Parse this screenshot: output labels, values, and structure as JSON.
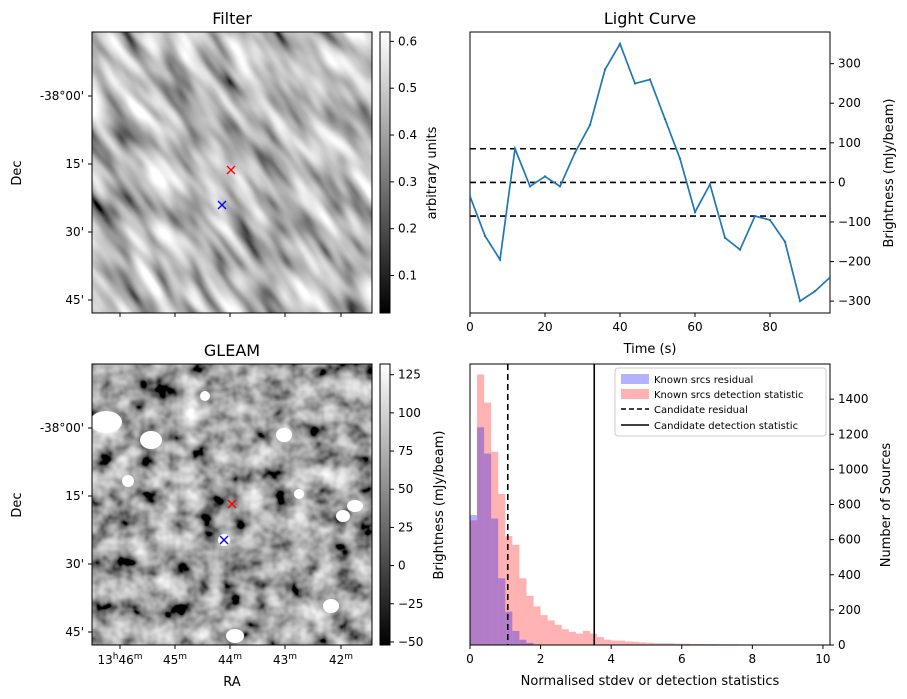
{
  "chart_data": [
    {
      "type": "heatmap",
      "title": "Filter",
      "ylabel": "Dec",
      "ytick_labels": [
        "-38°00'",
        "15'",
        "30'",
        "45'"
      ],
      "colormap": "gray",
      "colorbar": {
        "label": "arbitrary units",
        "range": [
          0.02,
          0.62
        ],
        "ticks": [
          0.1,
          0.2,
          0.3,
          0.4,
          0.5,
          0.6
        ],
        "tick_labels": [
          "0.1",
          "0.2",
          "0.3",
          "0.4",
          "0.5",
          "0.6"
        ]
      },
      "markers": [
        {
          "name": "red-x",
          "color": "#ff0000",
          "ra_deg": 206.0,
          "dec_deg": -38.25
        },
        {
          "name": "blue-x",
          "color": "#0000ff",
          "ra_deg": 206.02,
          "dec_deg": -38.4
        }
      ]
    },
    {
      "type": "line",
      "title": "Light Curve",
      "xlabel": "Time (s)",
      "ylabel": "Brightness (mJy/beam)",
      "xlim": [
        0,
        96
      ],
      "ylim": [
        -330,
        380
      ],
      "xticks": [
        0,
        20,
        40,
        60,
        80
      ],
      "yticks": [
        -300,
        -200,
        -100,
        0,
        100,
        200,
        300
      ],
      "series": [
        {
          "color": "#1f77b4",
          "x": [
            0,
            4,
            8,
            12,
            16,
            20,
            24,
            28,
            32,
            36,
            40,
            44,
            48,
            52,
            56,
            60,
            64,
            68,
            72,
            76,
            80,
            84,
            88,
            92,
            96
          ],
          "y": [
            -35,
            -135,
            -195,
            85,
            -10,
            15,
            -10,
            75,
            145,
            285,
            350,
            250,
            260,
            160,
            60,
            -75,
            -5,
            -140,
            -170,
            -85,
            -95,
            -150,
            -300,
            -275,
            -240
          ]
        }
      ],
      "hlines": [
        {
          "y": 85,
          "style": "dashed",
          "color": "#000000"
        },
        {
          "y": 0,
          "style": "dashed",
          "color": "#000000"
        },
        {
          "y": -85,
          "style": "dashed",
          "color": "#000000"
        }
      ]
    },
    {
      "type": "heatmap",
      "title": "GLEAM",
      "xlabel": "RA",
      "ylabel": "Dec",
      "ytick_labels": [
        "-38°00'",
        "15'",
        "30'",
        "45'"
      ],
      "xtick_labels": [
        {
          "main": "13",
          "sup1": "h",
          "mid": "46",
          "sup2": "m"
        },
        {
          "main": "45",
          "sup2": "m"
        },
        {
          "main": "44",
          "sup2": "m"
        },
        {
          "main": "43",
          "sup2": "m"
        },
        {
          "main": "42",
          "sup2": "m"
        }
      ],
      "colormap": "gray",
      "colorbar": {
        "label": "Brightness (mJy/beam)",
        "range": [
          -52,
          132
        ],
        "ticks": [
          -50,
          -25,
          0,
          25,
          50,
          75,
          100,
          125
        ],
        "tick_labels": [
          "−50",
          "−25",
          "0",
          "25",
          "50",
          "75",
          "100",
          "125"
        ]
      },
      "markers": [
        {
          "name": "red-x",
          "color": "#ff0000",
          "ra_deg": 206.0,
          "dec_deg": -38.25
        },
        {
          "name": "blue-x",
          "color": "#0000ff",
          "ra_deg": 206.02,
          "dec_deg": -38.4
        }
      ]
    },
    {
      "type": "bar",
      "subtype": "histogram",
      "xlabel": "Normalised stdev or detection statistics",
      "ylabel": "Number of Sources",
      "xlim": [
        0,
        10.2
      ],
      "ylim": [
        0,
        1600
      ],
      "xticks": [
        0,
        2,
        4,
        6,
        8,
        10
      ],
      "yticks": [
        0,
        200,
        400,
        600,
        800,
        1000,
        1200,
        1400
      ],
      "bin_width": 0.2,
      "series": [
        {
          "name": "Known srcs residual",
          "color": "#0000ff",
          "opacity": 0.3,
          "bin_starts": [
            0,
            0.2,
            0.4,
            0.6,
            0.8,
            1.0,
            1.2,
            1.4,
            1.6,
            1.8
          ],
          "values": [
            740,
            1240,
            1090,
            720,
            380,
            190,
            80,
            30,
            12,
            4
          ]
        },
        {
          "name": "Known srcs detection statistic",
          "color": "#ff0000",
          "opacity": 0.3,
          "bin_starts": [
            0,
            0.2,
            0.4,
            0.6,
            0.8,
            1.0,
            1.2,
            1.4,
            1.6,
            1.8,
            2.0,
            2.2,
            2.4,
            2.6,
            2.8,
            3.0,
            3.2,
            3.4,
            3.6,
            3.8,
            4.0,
            4.2,
            4.4,
            4.6,
            4.8,
            5.0,
            5.2,
            5.4,
            5.6,
            5.8,
            6.0,
            6.2,
            6.4,
            6.6,
            6.8,
            7.0,
            7.2,
            7.4,
            7.6,
            7.8,
            8.0,
            8.2,
            8.4,
            8.6,
            8.8,
            9.0,
            9.2,
            9.4,
            9.6,
            9.8
          ],
          "values": [
            710,
            1540,
            1380,
            1100,
            860,
            620,
            570,
            380,
            280,
            220,
            170,
            140,
            115,
            90,
            75,
            65,
            80,
            65,
            45,
            30,
            25,
            25,
            20,
            18,
            15,
            12,
            10,
            10,
            10,
            8,
            8,
            6,
            6,
            5,
            5,
            4,
            4,
            4,
            3,
            3,
            3,
            3,
            2,
            2,
            2,
            2,
            2,
            2,
            2,
            2
          ]
        }
      ],
      "vlines": [
        {
          "name": "Candidate residual",
          "x": 1.07,
          "style": "dashed",
          "color": "#000000"
        },
        {
          "name": "Candidate detection statistic",
          "x": 3.52,
          "style": "solid",
          "color": "#000000"
        }
      ],
      "legend": "top-right"
    }
  ]
}
